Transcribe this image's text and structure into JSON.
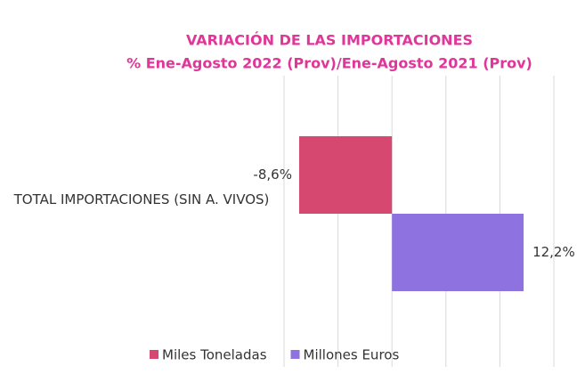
{
  "chart_data": {
    "type": "hbar",
    "title": "VARIACIÓN DE LAS IMPORTACIONES",
    "subtitle": "% Ene-Agosto 2022 (Prov)/Ene-Agosto 2021 (Prov)",
    "categories": [
      "TOTAL IMPORTACIONES (SIN A. VIVOS)"
    ],
    "series": [
      {
        "name": "Miles Toneladas",
        "color": "#d6486f",
        "values": [
          -8.6
        ],
        "value_labels": [
          "-8,6%"
        ]
      },
      {
        "name": "Millones Euros",
        "color": "#8d72e0",
        "values": [
          12.2
        ],
        "value_labels": [
          "12,2%"
        ]
      }
    ],
    "xlim": [
      -10,
      15
    ],
    "xticks": [
      -10,
      -5,
      0,
      5,
      10,
      15
    ],
    "grid": true
  }
}
